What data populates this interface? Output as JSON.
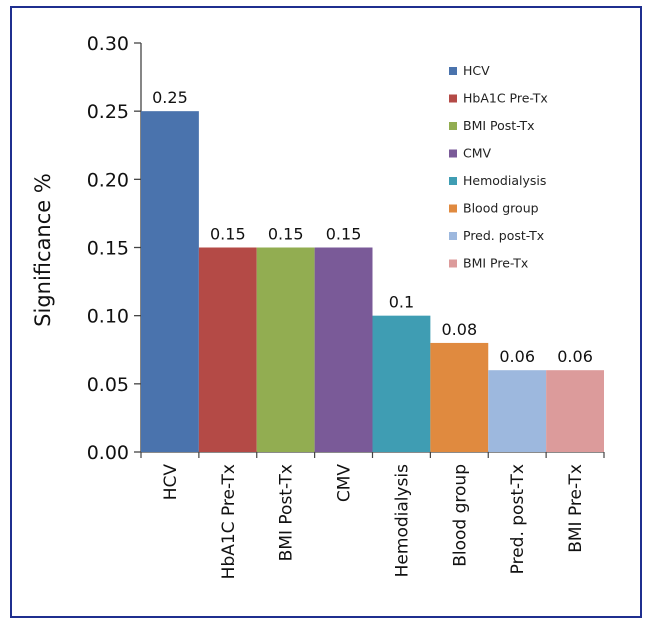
{
  "chart_data": {
    "type": "bar",
    "ylabel": "Significance %",
    "xlabel": "",
    "ylim": [
      0,
      0.3
    ],
    "yticks": [
      "0.00",
      "0.05",
      "0.10",
      "0.15",
      "0.20",
      "0.25",
      "0.30"
    ],
    "categories": [
      "HCV",
      "HbA1C Pre-Tx",
      "BMI Post-Tx",
      "CMV",
      "Hemodialysis",
      "Blood group",
      "Pred. post-Tx",
      "BMI Pre-Tx"
    ],
    "values": [
      0.25,
      0.15,
      0.15,
      0.15,
      0.1,
      0.08,
      0.06,
      0.06
    ],
    "value_labels": [
      "0.25",
      "0.15",
      "0.15",
      "0.15",
      "0.1",
      "0.08",
      "0.06",
      "0.06"
    ],
    "colors": [
      "#4a73ad",
      "#b44a46",
      "#92ad51",
      "#7a5a98",
      "#3f9db3",
      "#e08a3f",
      "#9db8de",
      "#dc9b9b"
    ],
    "legend": {
      "placement": "top-right",
      "entries": [
        "HCV",
        "HbA1C Pre-Tx",
        "BMI Post-Tx",
        "CMV",
        "Hemodialysis",
        "Blood group",
        "Pred. post-Tx",
        "BMI Pre-Tx"
      ]
    },
    "grid": false
  }
}
